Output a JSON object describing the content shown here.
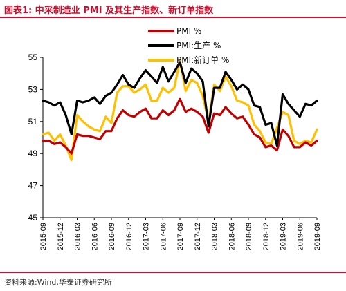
{
  "title": "图表1:  中采制造业 PMI 及其生产指数、新订单指数",
  "source": "资料来源:Wind,华泰证券研究所",
  "chart_data": {
    "type": "line",
    "ylim": [
      45,
      55
    ],
    "yticks": [
      "45",
      "47",
      "49",
      "51",
      "53",
      "55"
    ],
    "xtick_labels": [
      "2015-09",
      "2015-12",
      "2016-03",
      "2016-06",
      "2016-09",
      "2016-12",
      "2017-03",
      "2017-06",
      "2017-09",
      "2017-12",
      "2018-03",
      "2018-06",
      "2018-09",
      "2018-12",
      "2019-03",
      "2019-06",
      "2019-09"
    ],
    "x": [
      "2015-09",
      "2015-10",
      "2015-11",
      "2015-12",
      "2016-01",
      "2016-02",
      "2016-03",
      "2016-04",
      "2016-05",
      "2016-06",
      "2016-07",
      "2016-08",
      "2016-09",
      "2016-10",
      "2016-11",
      "2016-12",
      "2017-01",
      "2017-02",
      "2017-03",
      "2017-04",
      "2017-05",
      "2017-06",
      "2017-07",
      "2017-08",
      "2017-09",
      "2017-10",
      "2017-11",
      "2017-12",
      "2018-01",
      "2018-02",
      "2018-03",
      "2018-04",
      "2018-05",
      "2018-06",
      "2018-07",
      "2018-08",
      "2018-09",
      "2018-10",
      "2018-11",
      "2018-12",
      "2019-01",
      "2019-02",
      "2019-03",
      "2019-04",
      "2019-05",
      "2019-06",
      "2019-07",
      "2019-08",
      "2019-09"
    ],
    "grid": false,
    "legend_position": "top-center",
    "series": [
      {
        "name": "PMI %",
        "color": "#c00000",
        "values": [
          49.8,
          49.8,
          49.6,
          49.7,
          49.4,
          49.0,
          50.2,
          50.1,
          50.1,
          50.0,
          49.9,
          50.4,
          50.4,
          51.2,
          51.7,
          51.4,
          51.3,
          51.6,
          51.8,
          51.2,
          51.2,
          51.7,
          51.4,
          51.7,
          52.4,
          51.6,
          51.8,
          51.6,
          51.3,
          50.3,
          51.5,
          51.4,
          51.9,
          51.5,
          51.2,
          51.3,
          50.8,
          50.2,
          50.0,
          49.4,
          49.5,
          49.2,
          50.5,
          50.1,
          49.4,
          49.4,
          49.7,
          49.5,
          49.8
        ]
      },
      {
        "name": "PMI:生产 %",
        "color": "#000000",
        "values": [
          52.3,
          52.2,
          52.0,
          52.2,
          51.4,
          50.2,
          52.3,
          52.2,
          52.3,
          52.5,
          52.1,
          52.6,
          52.8,
          53.3,
          53.9,
          53.3,
          53.1,
          53.7,
          54.2,
          53.8,
          53.4,
          54.4,
          53.5,
          54.1,
          54.7,
          53.4,
          54.3,
          54.0,
          53.5,
          50.7,
          53.1,
          53.1,
          54.1,
          53.6,
          53.0,
          53.3,
          53.0,
          52.0,
          51.9,
          50.8,
          50.9,
          49.5,
          52.7,
          52.1,
          51.7,
          51.3,
          52.1,
          52.0,
          52.3
        ]
      },
      {
        "name": "PMI:新订单 %",
        "color": "#ffc000",
        "values": [
          50.2,
          50.3,
          49.8,
          50.2,
          49.5,
          48.6,
          51.4,
          51.0,
          50.7,
          50.5,
          50.4,
          51.3,
          50.9,
          52.8,
          53.2,
          53.2,
          52.8,
          53.0,
          53.3,
          52.3,
          52.3,
          53.1,
          52.8,
          53.1,
          54.8,
          52.9,
          53.6,
          53.4,
          52.6,
          51.0,
          53.3,
          52.9,
          53.8,
          53.2,
          52.3,
          52.2,
          52.0,
          50.8,
          50.4,
          49.7,
          49.6,
          50.6,
          51.6,
          51.4,
          49.8,
          49.6,
          49.8,
          49.7,
          50.5
        ]
      }
    ]
  }
}
